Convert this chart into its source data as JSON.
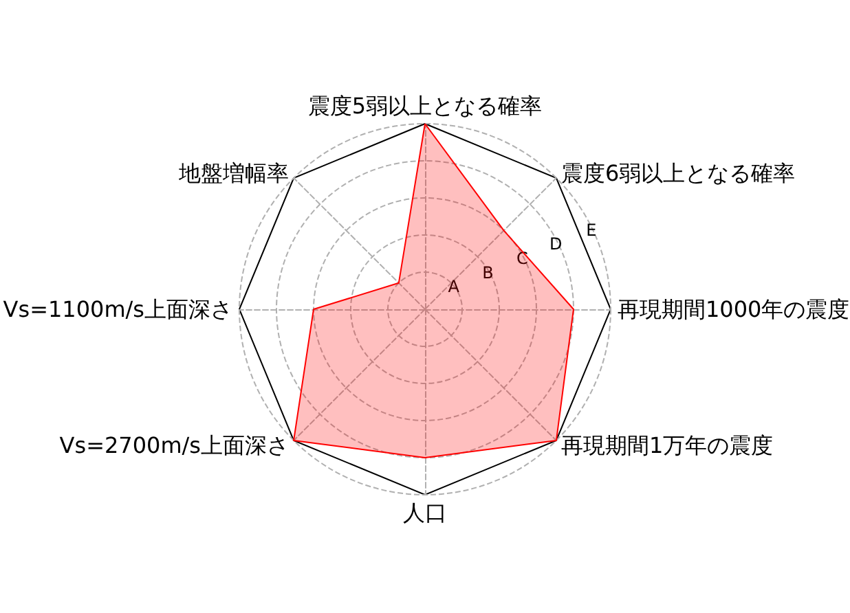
{
  "chart_data": {
    "type": "radar",
    "categories": [
      "震度5弱以上となる確率",
      "震度6弱以上となる確率",
      "再現期間1000年の震度",
      "再現期間1万年の震度",
      "人口",
      "Vs=2700m/s上面深さ",
      "Vs=1100m/s上面深さ",
      "地盤増幅率"
    ],
    "series": [
      {
        "color": "#ff0000",
        "values": [
          5,
          3,
          4,
          5,
          4,
          5,
          3,
          1
        ]
      }
    ],
    "ylim": [
      0,
      5
    ],
    "yticks": [
      {
        "value": 1,
        "label": "A"
      },
      {
        "value": 2,
        "label": "B"
      },
      {
        "value": 3,
        "label": "C"
      },
      {
        "value": 4,
        "label": "D"
      },
      {
        "value": 5,
        "label": "E"
      }
    ],
    "grid": true,
    "marker": "none"
  }
}
